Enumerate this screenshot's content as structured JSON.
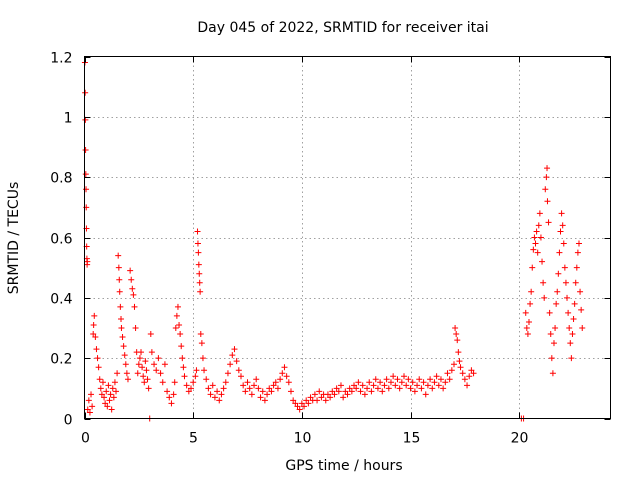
{
  "chart_data": {
    "type": "scatter",
    "title": "Day 045 of 2022, SRMTID for receiver itai",
    "xlabel": "GPS time / hours",
    "ylabel": "SRMTID / TECUs",
    "xlim": [
      0,
      24.2
    ],
    "ylim": [
      0,
      1.2
    ],
    "x_ticks": [
      0,
      5,
      10,
      15,
      20
    ],
    "x_tick_labels": [
      "0",
      "5",
      "10",
      "15",
      "20"
    ],
    "y_ticks": [
      0,
      0.2,
      0.4,
      0.6,
      0.8,
      1.0,
      1.2
    ],
    "y_tick_labels": [
      "0",
      "0.2",
      "0.4",
      "0.6",
      "0.8",
      "1",
      "1.2"
    ],
    "grid": true,
    "marker": "plus",
    "color": "#ff0000",
    "series": [
      {
        "name": "SRMTID",
        "points": [
          [
            0.02,
            1.18
          ],
          [
            0.03,
            1.08
          ],
          [
            0.04,
            0.99
          ],
          [
            0.05,
            0.89
          ],
          [
            0.06,
            0.81
          ],
          [
            0.07,
            0.76
          ],
          [
            0.08,
            0.7
          ],
          [
            0.09,
            0.63
          ],
          [
            0.1,
            0.57
          ],
          [
            0.11,
            0.53
          ],
          [
            0.12,
            0.51
          ],
          [
            0.13,
            0.52
          ],
          [
            0.15,
            0.03
          ],
          [
            0.2,
            0.06
          ],
          [
            0.25,
            0.02
          ],
          [
            0.3,
            0.08
          ],
          [
            0.35,
            0.04
          ],
          [
            0.4,
            0.28
          ],
          [
            0.42,
            0.31
          ],
          [
            0.45,
            0.34
          ],
          [
            0.5,
            0.27
          ],
          [
            0.55,
            0.23
          ],
          [
            0.6,
            0.2
          ],
          [
            0.65,
            0.17
          ],
          [
            0.7,
            0.13
          ],
          [
            0.75,
            0.1
          ],
          [
            0.8,
            0.08
          ],
          [
            0.85,
            0.12
          ],
          [
            0.9,
            0.07
          ],
          [
            0.95,
            0.05
          ],
          [
            1.0,
            0.09
          ],
          [
            1.05,
            0.04
          ],
          [
            1.1,
            0.11
          ],
          [
            1.15,
            0.06
          ],
          [
            1.2,
            0.08
          ],
          [
            1.25,
            0.03
          ],
          [
            1.3,
            0.1
          ],
          [
            1.35,
            0.07
          ],
          [
            1.4,
            0.12
          ],
          [
            1.45,
            0.09
          ],
          [
            1.5,
            0.15
          ],
          [
            1.55,
            0.54
          ],
          [
            1.58,
            0.5
          ],
          [
            1.6,
            0.46
          ],
          [
            1.62,
            0.42
          ],
          [
            1.65,
            0.37
          ],
          [
            1.68,
            0.33
          ],
          [
            1.7,
            0.3
          ],
          [
            1.75,
            0.27
          ],
          [
            1.8,
            0.24
          ],
          [
            1.85,
            0.21
          ],
          [
            1.9,
            0.18
          ],
          [
            1.95,
            0.15
          ],
          [
            2.0,
            0.13
          ],
          [
            2.1,
            0.49
          ],
          [
            2.15,
            0.46
          ],
          [
            2.2,
            0.43
          ],
          [
            2.25,
            0.41
          ],
          [
            2.3,
            0.37
          ],
          [
            2.35,
            0.3
          ],
          [
            2.4,
            0.22
          ],
          [
            2.45,
            0.15
          ],
          [
            2.5,
            0.18
          ],
          [
            2.55,
            0.2
          ],
          [
            2.6,
            0.22
          ],
          [
            2.65,
            0.17
          ],
          [
            2.7,
            0.14
          ],
          [
            2.75,
            0.12
          ],
          [
            2.8,
            0.19
          ],
          [
            2.85,
            0.16
          ],
          [
            2.9,
            0.13
          ],
          [
            2.95,
            0.1
          ],
          [
            3.0,
            0.0
          ],
          [
            3.05,
            0.28
          ],
          [
            3.1,
            0.22
          ],
          [
            3.2,
            0.18
          ],
          [
            3.3,
            0.16
          ],
          [
            3.4,
            0.2
          ],
          [
            3.5,
            0.15
          ],
          [
            3.6,
            0.12
          ],
          [
            3.7,
            0.18
          ],
          [
            3.8,
            0.09
          ],
          [
            3.9,
            0.07
          ],
          [
            4.0,
            0.05
          ],
          [
            4.1,
            0.08
          ],
          [
            4.15,
            0.12
          ],
          [
            4.2,
            0.3
          ],
          [
            4.25,
            0.34
          ],
          [
            4.3,
            0.37
          ],
          [
            4.35,
            0.31
          ],
          [
            4.4,
            0.28
          ],
          [
            4.45,
            0.24
          ],
          [
            4.5,
            0.2
          ],
          [
            4.55,
            0.17
          ],
          [
            4.6,
            0.14
          ],
          [
            4.7,
            0.11
          ],
          [
            4.8,
            0.09
          ],
          [
            4.9,
            0.1
          ],
          [
            5.0,
            0.12
          ],
          [
            5.1,
            0.14
          ],
          [
            5.15,
            0.16
          ],
          [
            5.2,
            0.62
          ],
          [
            5.22,
            0.58
          ],
          [
            5.24,
            0.55
          ],
          [
            5.26,
            0.51
          ],
          [
            5.28,
            0.48
          ],
          [
            5.3,
            0.45
          ],
          [
            5.32,
            0.42
          ],
          [
            5.35,
            0.28
          ],
          [
            5.4,
            0.25
          ],
          [
            5.45,
            0.2
          ],
          [
            5.5,
            0.16
          ],
          [
            5.6,
            0.13
          ],
          [
            5.7,
            0.1
          ],
          [
            5.8,
            0.08
          ],
          [
            5.9,
            0.11
          ],
          [
            6.0,
            0.07
          ],
          [
            6.1,
            0.09
          ],
          [
            6.2,
            0.06
          ],
          [
            6.3,
            0.08
          ],
          [
            6.4,
            0.1
          ],
          [
            6.5,
            0.12
          ],
          [
            6.6,
            0.15
          ],
          [
            6.7,
            0.18
          ],
          [
            6.8,
            0.21
          ],
          [
            6.9,
            0.23
          ],
          [
            7.0,
            0.19
          ],
          [
            7.1,
            0.16
          ],
          [
            7.2,
            0.14
          ],
          [
            7.3,
            0.11
          ],
          [
            7.4,
            0.09
          ],
          [
            7.5,
            0.12
          ],
          [
            7.6,
            0.1
          ],
          [
            7.7,
            0.08
          ],
          [
            7.8,
            0.11
          ],
          [
            7.9,
            0.13
          ],
          [
            8.0,
            0.1
          ],
          [
            8.1,
            0.07
          ],
          [
            8.2,
            0.09
          ],
          [
            8.3,
            0.06
          ],
          [
            8.4,
            0.08
          ],
          [
            8.5,
            0.1
          ],
          [
            8.6,
            0.09
          ],
          [
            8.7,
            0.11
          ],
          [
            8.8,
            0.12
          ],
          [
            8.9,
            0.1
          ],
          [
            9.0,
            0.13
          ],
          [
            9.1,
            0.15
          ],
          [
            9.2,
            0.17
          ],
          [
            9.3,
            0.14
          ],
          [
            9.4,
            0.12
          ],
          [
            9.5,
            0.09
          ],
          [
            9.6,
            0.06
          ],
          [
            9.7,
            0.05
          ],
          [
            9.8,
            0.04
          ],
          [
            9.9,
            0.03
          ],
          [
            10.0,
            0.05
          ],
          [
            10.1,
            0.04
          ],
          [
            10.2,
            0.06
          ],
          [
            10.3,
            0.05
          ],
          [
            10.4,
            0.07
          ],
          [
            10.5,
            0.06
          ],
          [
            10.6,
            0.08
          ],
          [
            10.7,
            0.06
          ],
          [
            10.8,
            0.09
          ],
          [
            10.9,
            0.07
          ],
          [
            11.0,
            0.08
          ],
          [
            11.1,
            0.06
          ],
          [
            11.2,
            0.08
          ],
          [
            11.3,
            0.07
          ],
          [
            11.4,
            0.09
          ],
          [
            11.5,
            0.08
          ],
          [
            11.6,
            0.1
          ],
          [
            11.7,
            0.09
          ],
          [
            11.8,
            0.11
          ],
          [
            11.9,
            0.07
          ],
          [
            12.0,
            0.09
          ],
          [
            12.1,
            0.08
          ],
          [
            12.2,
            0.1
          ],
          [
            12.3,
            0.09
          ],
          [
            12.4,
            0.11
          ],
          [
            12.5,
            0.1
          ],
          [
            12.6,
            0.12
          ],
          [
            12.7,
            0.09
          ],
          [
            12.8,
            0.11
          ],
          [
            12.9,
            0.08
          ],
          [
            13.0,
            0.1
          ],
          [
            13.1,
            0.12
          ],
          [
            13.2,
            0.09
          ],
          [
            13.3,
            0.11
          ],
          [
            13.4,
            0.13
          ],
          [
            13.5,
            0.1
          ],
          [
            13.6,
            0.12
          ],
          [
            13.7,
            0.09
          ],
          [
            13.8,
            0.11
          ],
          [
            13.9,
            0.13
          ],
          [
            14.0,
            0.1
          ],
          [
            14.1,
            0.12
          ],
          [
            14.2,
            0.14
          ],
          [
            14.3,
            0.11
          ],
          [
            14.4,
            0.13
          ],
          [
            14.5,
            0.1
          ],
          [
            14.6,
            0.12
          ],
          [
            14.7,
            0.14
          ],
          [
            14.8,
            0.11
          ],
          [
            14.9,
            0.13
          ],
          [
            15.0,
            0.1
          ],
          [
            15.1,
            0.12
          ],
          [
            15.2,
            0.09
          ],
          [
            15.3,
            0.11
          ],
          [
            15.4,
            0.13
          ],
          [
            15.5,
            0.1
          ],
          [
            15.6,
            0.12
          ],
          [
            15.7,
            0.08
          ],
          [
            15.8,
            0.11
          ],
          [
            15.9,
            0.13
          ],
          [
            16.0,
            0.1
          ],
          [
            16.1,
            0.12
          ],
          [
            16.2,
            0.14
          ],
          [
            16.3,
            0.11
          ],
          [
            16.4,
            0.13
          ],
          [
            16.5,
            0.1
          ],
          [
            16.6,
            0.12
          ],
          [
            16.7,
            0.15
          ],
          [
            16.8,
            0.13
          ],
          [
            16.9,
            0.16
          ],
          [
            17.0,
            0.18
          ],
          [
            17.05,
            0.3
          ],
          [
            17.1,
            0.28
          ],
          [
            17.15,
            0.26
          ],
          [
            17.2,
            0.22
          ],
          [
            17.25,
            0.19
          ],
          [
            17.3,
            0.17
          ],
          [
            17.4,
            0.15
          ],
          [
            17.5,
            0.13
          ],
          [
            17.6,
            0.11
          ],
          [
            17.7,
            0.14
          ],
          [
            17.8,
            0.16
          ],
          [
            17.9,
            0.15
          ],
          [
            20.1,
            0.0
          ],
          [
            20.2,
            0.0
          ],
          [
            20.3,
            0.35
          ],
          [
            20.35,
            0.3
          ],
          [
            20.4,
            0.28
          ],
          [
            20.45,
            0.32
          ],
          [
            20.5,
            0.38
          ],
          [
            20.55,
            0.42
          ],
          [
            20.6,
            0.5
          ],
          [
            20.65,
            0.56
          ],
          [
            20.7,
            0.6
          ],
          [
            20.75,
            0.58
          ],
          [
            20.8,
            0.62
          ],
          [
            20.85,
            0.55
          ],
          [
            20.9,
            0.64
          ],
          [
            20.95,
            0.68
          ],
          [
            21.0,
            0.6
          ],
          [
            21.05,
            0.52
          ],
          [
            21.1,
            0.45
          ],
          [
            21.15,
            0.4
          ],
          [
            21.2,
            0.76
          ],
          [
            21.25,
            0.8
          ],
          [
            21.28,
            0.83
          ],
          [
            21.3,
            0.72
          ],
          [
            21.35,
            0.65
          ],
          [
            21.4,
            0.35
          ],
          [
            21.45,
            0.28
          ],
          [
            21.5,
            0.2
          ],
          [
            21.55,
            0.15
          ],
          [
            21.6,
            0.25
          ],
          [
            21.65,
            0.3
          ],
          [
            21.7,
            0.38
          ],
          [
            21.75,
            0.42
          ],
          [
            21.8,
            0.48
          ],
          [
            21.85,
            0.55
          ],
          [
            21.9,
            0.62
          ],
          [
            21.95,
            0.68
          ],
          [
            22.0,
            0.64
          ],
          [
            22.05,
            0.58
          ],
          [
            22.1,
            0.5
          ],
          [
            22.15,
            0.45
          ],
          [
            22.2,
            0.4
          ],
          [
            22.25,
            0.35
          ],
          [
            22.3,
            0.3
          ],
          [
            22.35,
            0.25
          ],
          [
            22.4,
            0.2
          ],
          [
            22.45,
            0.28
          ],
          [
            22.5,
            0.33
          ],
          [
            22.55,
            0.38
          ],
          [
            22.6,
            0.45
          ],
          [
            22.65,
            0.5
          ],
          [
            22.7,
            0.55
          ],
          [
            22.75,
            0.58
          ],
          [
            22.8,
            0.42
          ],
          [
            22.85,
            0.36
          ],
          [
            22.9,
            0.3
          ]
        ]
      }
    ]
  }
}
